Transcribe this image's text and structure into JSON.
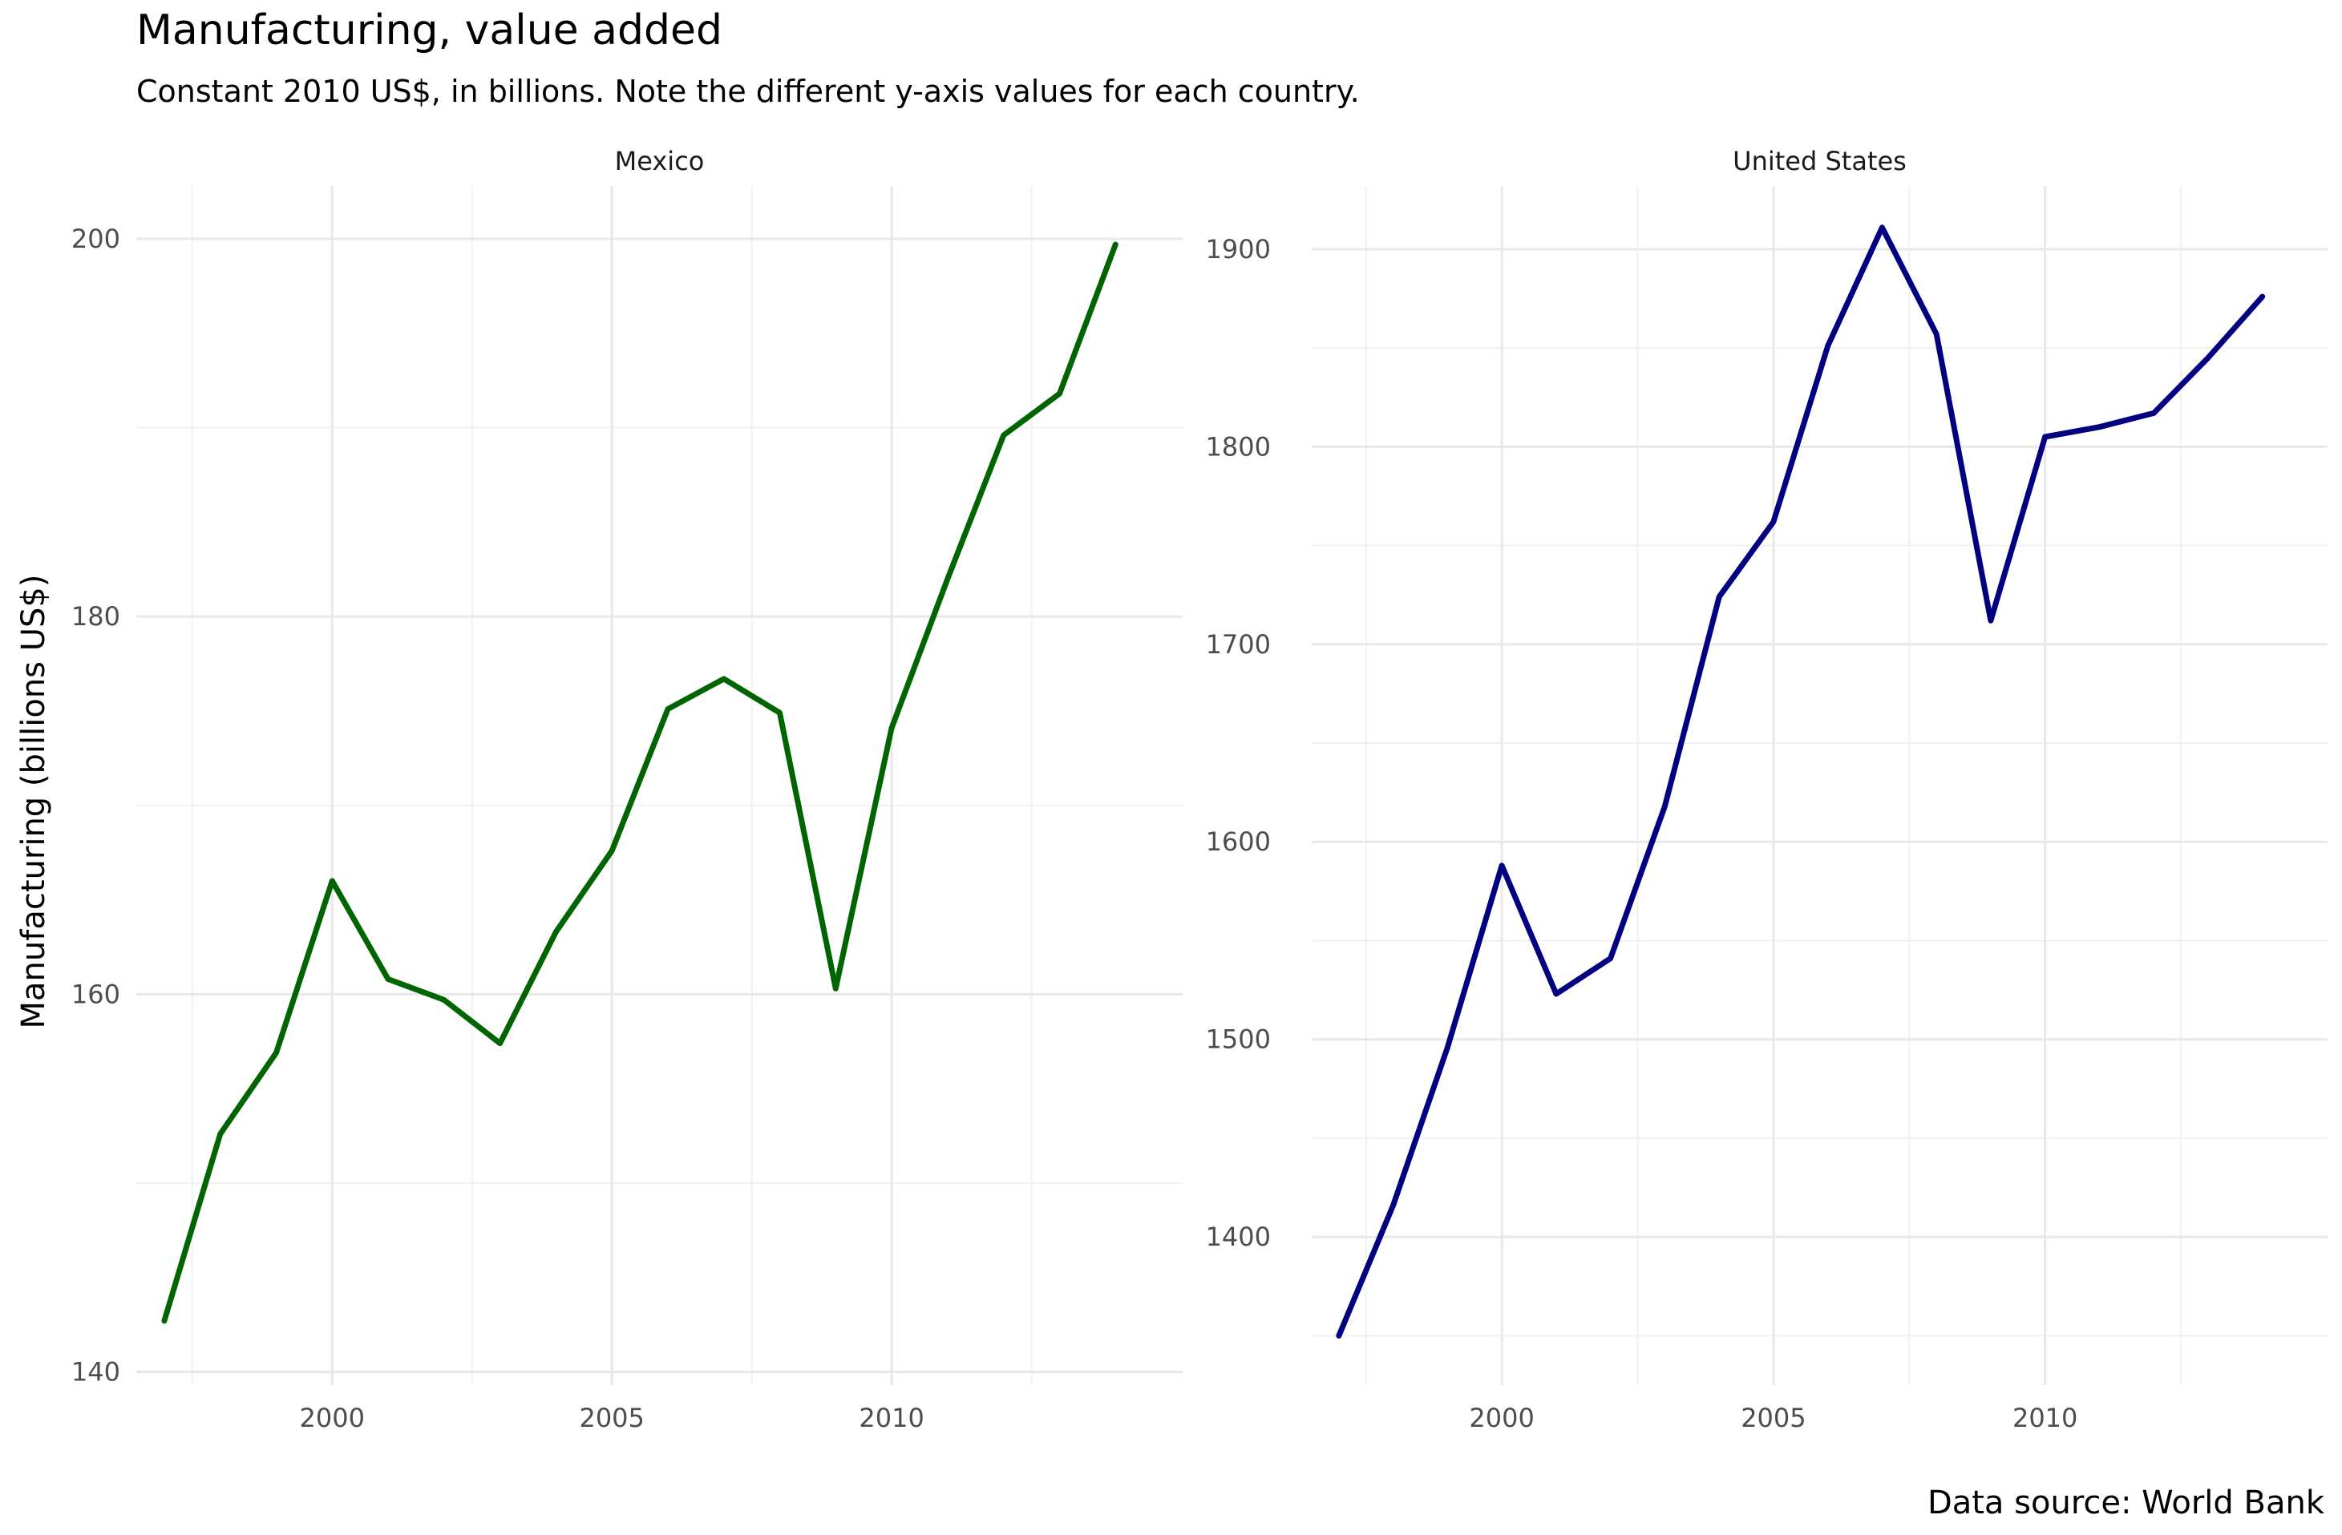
{
  "title": "Manufacturing, value added",
  "subtitle": "Constant 2010 US$, in billions. Note the different y-axis values for each country.",
  "ylabel": "Manufacturing (billions US$)",
  "caption": "Data source: World Bank",
  "chart_data": {
    "type": "line",
    "title": "Manufacturing, value added",
    "ylabel": "Manufacturing (billions US$)",
    "x_ticks": [
      2000,
      2005,
      2010
    ],
    "grid": true,
    "panels": [
      {
        "name": "Mexico",
        "color": "#006400",
        "xlim": [
          1996.5,
          2015.2
        ],
        "ylim": [
          139.3,
          202.8
        ],
        "y_ticks": [
          140,
          160,
          180,
          200
        ],
        "x": [
          1997,
          1998,
          1999,
          2000,
          2001,
          2002,
          2003,
          2004,
          2005,
          2006,
          2007,
          2008,
          2009,
          2010,
          2011,
          2012,
          2013,
          2014
        ],
        "values": [
          142.7,
          152.6,
          156.9,
          166.0,
          160.8,
          159.7,
          157.4,
          163.3,
          167.6,
          175.1,
          176.7,
          174.9,
          160.3,
          174.1,
          182.0,
          189.6,
          191.8,
          199.7
        ]
      },
      {
        "name": "United States",
        "color": "#000080",
        "xlim": [
          1996.5,
          2015.2
        ],
        "ylim": [
          1325,
          1932
        ],
        "y_ticks": [
          1400,
          1500,
          1600,
          1700,
          1800,
          1900
        ],
        "x": [
          1997,
          1998,
          1999,
          2000,
          2001,
          2002,
          2003,
          2004,
          2005,
          2006,
          2007,
          2008,
          2009,
          2010,
          2011,
          2012,
          2013,
          2014
        ],
        "values": [
          1350,
          1416,
          1496,
          1588,
          1523,
          1541,
          1618,
          1724,
          1762,
          1851,
          1911,
          1857,
          1712,
          1805,
          1810,
          1817,
          1845,
          1876
        ]
      }
    ]
  }
}
